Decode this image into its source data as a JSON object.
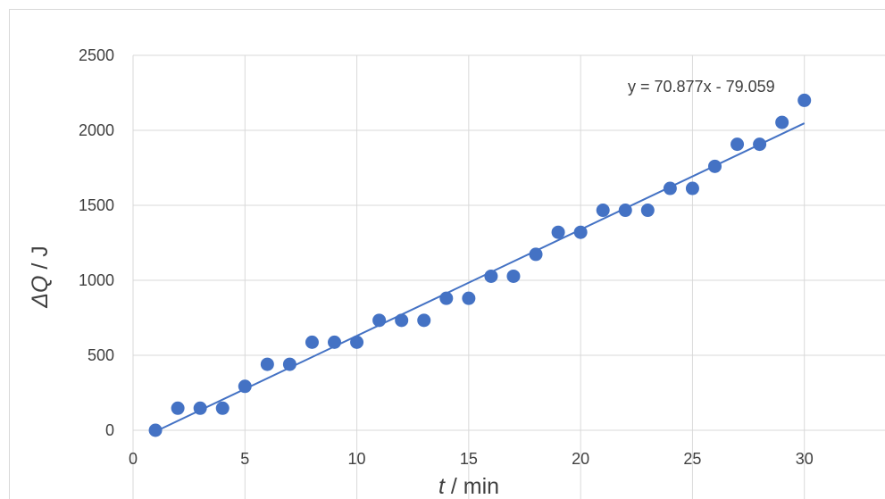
{
  "chart_data": {
    "type": "scatter",
    "x_axis": {
      "label_var": "t",
      "label_rest": " / min",
      "ticks": [
        0,
        5,
        10,
        15,
        20,
        25,
        30
      ],
      "range": [
        0,
        35
      ]
    },
    "y_axis": {
      "label_var": "ΔQ",
      "label_rest": " / J",
      "ticks": [
        0,
        500,
        1000,
        1500,
        2000,
        2500
      ],
      "range": [
        0,
        2500
      ]
    },
    "grid": true,
    "x": [
      1,
      2,
      3,
      4,
      5,
      6,
      7,
      8,
      9,
      10,
      11,
      12,
      13,
      14,
      15,
      16,
      17,
      18,
      19,
      20,
      21,
      22,
      23,
      24,
      25,
      26,
      27,
      28,
      29,
      30
    ],
    "y": [
      0,
      147,
      147,
      147,
      293,
      440,
      440,
      587,
      587,
      587,
      733,
      733,
      733,
      880,
      880,
      1027,
      1027,
      1173,
      1320,
      1320,
      1467,
      1467,
      1467,
      1613,
      1613,
      1760,
      1907,
      1907,
      2053,
      2200
    ],
    "trendline": {
      "slope": 70.877,
      "intercept": -79.059,
      "x_range": [
        1,
        30
      ],
      "equation": "y = 70.877x - 79.059"
    },
    "colors": {
      "marker": "#4472c4",
      "line": "#4472c4",
      "grid": "#d9d9d9",
      "text": "#404040"
    }
  }
}
